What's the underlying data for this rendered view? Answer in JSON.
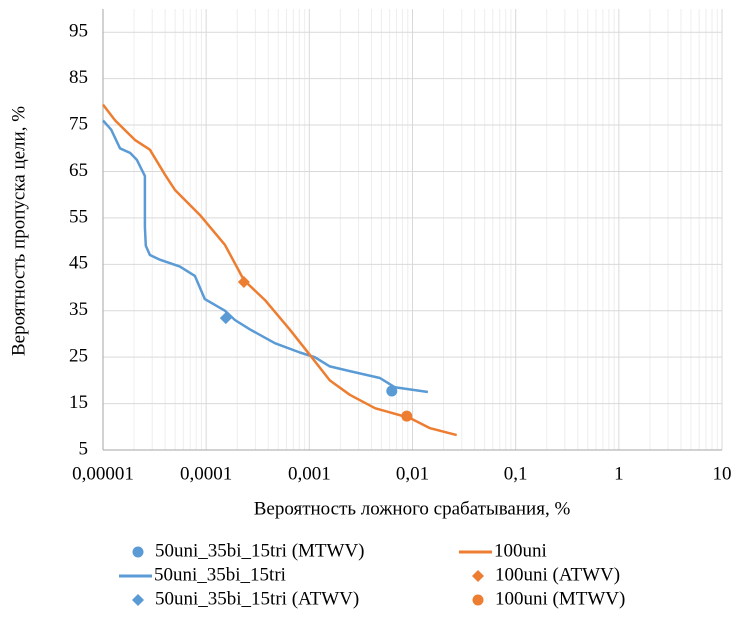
{
  "chart_data": {
    "type": "line",
    "xlabel": "Вероятность ложного срабатывания, %",
    "ylabel": "Вероятность пропуска цели, %",
    "xscale": "log",
    "xlim": [
      1e-05,
      10
    ],
    "xticks": [
      {
        "value": 1e-05,
        "label": "0,00001"
      },
      {
        "value": 0.0001,
        "label": "0,0001"
      },
      {
        "value": 0.001,
        "label": "0,001"
      },
      {
        "value": 0.01,
        "label": "0,01"
      },
      {
        "value": 0.1,
        "label": "0,1"
      },
      1,
      10
    ],
    "ylim": [
      5,
      100
    ],
    "yticks": [
      5,
      15,
      25,
      35,
      45,
      55,
      65,
      75,
      85,
      95
    ],
    "grid": true,
    "minor_grid": true,
    "legend": "bottom",
    "series": [
      {
        "name": "50uni_35bi_15tri (MTWV)",
        "color": "#5b9bd5",
        "marker": "circle",
        "x": [
          0.0063
        ],
        "values": [
          17.7
        ]
      },
      {
        "name": "50uni_35bi_15tri",
        "color": "#5b9bd5",
        "marker": "line",
        "x": [
          1e-05,
          1.2e-05,
          1.46e-05,
          1.83e-05,
          2.13e-05,
          2.55e-05,
          2.55e-05,
          2.6e-05,
          2.85e-05,
          3.56e-05,
          5.57e-05,
          7.78e-05,
          9.7e-05,
          0.000152,
          0.00019,
          0.000265,
          0.000464,
          0.00081,
          0.00113,
          0.00158,
          0.00247,
          0.00483,
          0.00675,
          0.0141
        ],
        "values": [
          76,
          74,
          70,
          69,
          67.5,
          64,
          53,
          49,
          47,
          46,
          44.5,
          42.5,
          37.5,
          35,
          33,
          31,
          28,
          26,
          25,
          23,
          22,
          20.5,
          18.5,
          17.5
        ]
      },
      {
        "name": "50uni_35bi_15tri (ATWV)",
        "color": "#5b9bd5",
        "marker": "diamond",
        "x": [
          0.000155
        ],
        "values": [
          33.4
        ]
      },
      {
        "name": "100uni",
        "color": "#ed7d31",
        "marker": "line",
        "x": [
          1e-05,
          1.31e-05,
          2.04e-05,
          2.85e-05,
          3.99e-05,
          4.99e-05,
          8.71e-05,
          0.000152,
          0.000232,
          0.000372,
          0.000649,
          0.00101,
          0.00158,
          0.00247,
          0.00433,
          0.00944,
          0.0148,
          0.0268
        ],
        "values": [
          79.4,
          76,
          71.8,
          69.7,
          64.3,
          61,
          55.6,
          49.2,
          41.6,
          37.3,
          30.9,
          25.5,
          20,
          16.9,
          14,
          11.9,
          9.7,
          8.2
        ]
      },
      {
        "name": "100uni (ATWV)",
        "color": "#ed7d31",
        "marker": "diamond",
        "x": [
          0.000232
        ],
        "values": [
          41.2
        ]
      },
      {
        "name": "100uni (MTWV)",
        "color": "#ed7d31",
        "marker": "circle",
        "x": [
          0.0088
        ],
        "values": [
          12.3
        ]
      }
    ]
  }
}
